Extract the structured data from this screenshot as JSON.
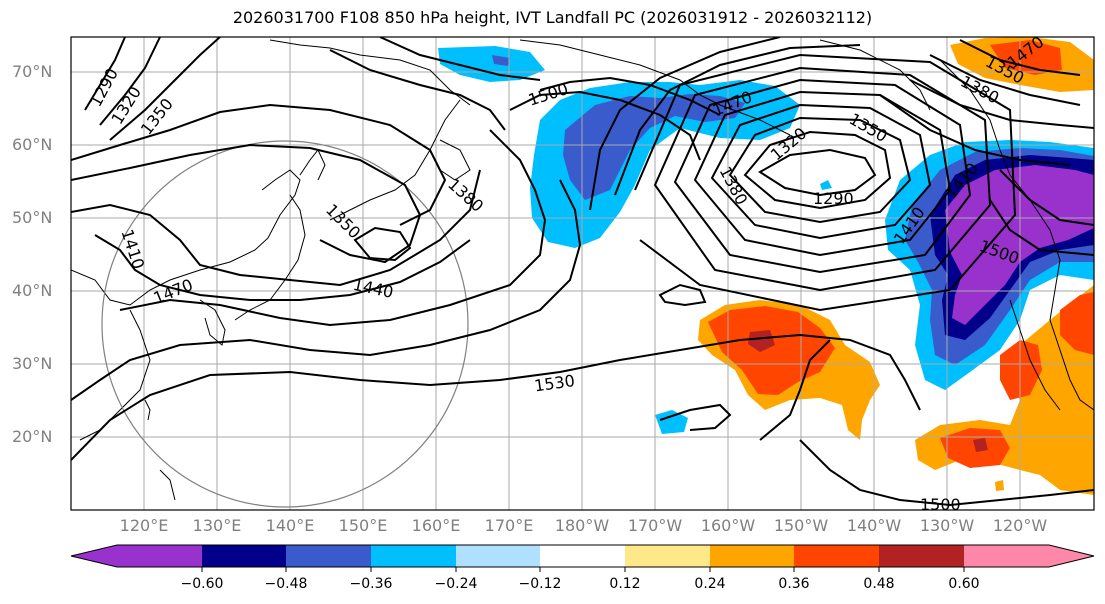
{
  "title": "2026031700 F108 850 hPa height, IVT Landfall PC (2026031912 - 2026032112)",
  "lat_labels": [
    "70°N",
    "60°N",
    "50°N",
    "40°N",
    "30°N",
    "20°N"
  ],
  "lon_labels": [
    "120°E",
    "130°E",
    "140°E",
    "150°E",
    "160°E",
    "170°E",
    "180°W",
    "170°W",
    "160°W",
    "150°W",
    "140°W",
    "130°W",
    "120°W"
  ],
  "contour_labels": [
    "1290",
    "1320",
    "1350",
    "1500",
    "1470",
    "1320",
    "1350",
    "1290",
    "1380",
    "1410",
    "1470",
    "1440",
    "1350",
    "1380",
    "1410",
    "1530",
    "1500",
    "1380",
    "1350",
    "1470",
    "1410",
    "1500"
  ],
  "colorbar": {
    "ticks": [
      "−0.60",
      "−0.48",
      "−0.36",
      "−0.24",
      "−0.12",
      "0.12",
      "0.24",
      "0.36",
      "0.48",
      "0.60"
    ],
    "colors": [
      "#9932cc",
      "#00008b",
      "#3a5bcc",
      "#00bfff",
      "#b0e0ff",
      "#ffffff",
      "#ffe88a",
      "#ffa500",
      "#ff4500",
      "#b22222",
      "#ff88aa"
    ]
  }
}
